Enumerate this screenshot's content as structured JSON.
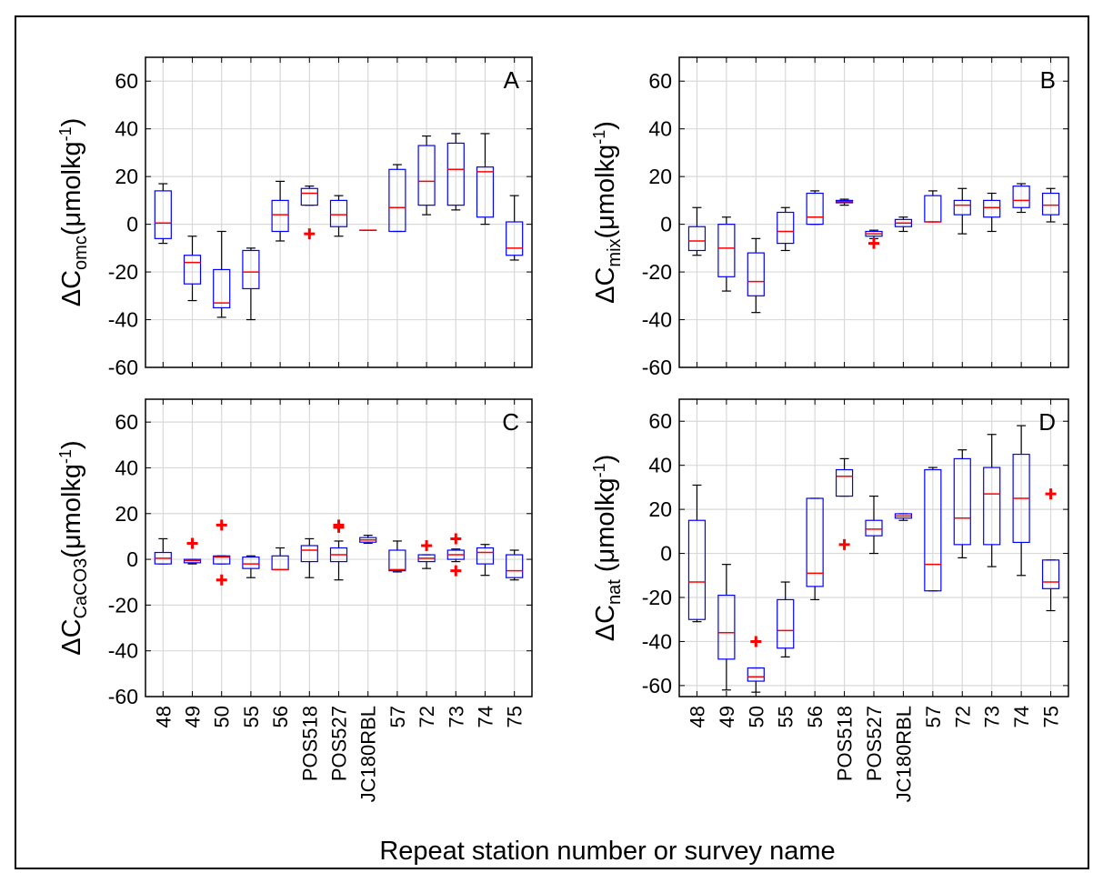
{
  "xlabel": "Repeat station number or survey name",
  "chart_data": [
    {
      "type": "box",
      "label": "A",
      "ylabel": {
        "base": "ΔC",
        "sub": "omc",
        "unit": "(μmolkg",
        "sup": "-1",
        "end": ")"
      },
      "ylim": [
        -60,
        70
      ],
      "yticks": [
        -60,
        -40,
        -20,
        0,
        20,
        40,
        60
      ],
      "grid": true,
      "box_color": "#0000ff",
      "median_color": "#ff0000",
      "whisker_color": "#000000",
      "outlier_color": "#ff0000",
      "whisker_low": [
        -8,
        -32,
        -39,
        -40,
        -7,
        8,
        -5,
        -2.5,
        -3,
        4,
        6,
        0,
        -15
      ],
      "q1": [
        -6,
        -25,
        -35,
        -27,
        -3,
        8,
        -1,
        -2.5,
        -3,
        8,
        8,
        3,
        -13
      ],
      "median": [
        0.5,
        -16,
        -33,
        -20,
        4,
        13,
        4,
        -2.5,
        7,
        18,
        23,
        22,
        -10
      ],
      "q3": [
        14,
        -13,
        -19,
        -11,
        10,
        15,
        10,
        -2.5,
        23,
        33,
        34,
        24,
        1
      ],
      "whisker_high": [
        17,
        -5,
        -3,
        -10,
        18,
        16,
        12,
        -2.5,
        25,
        37,
        38,
        38,
        12
      ],
      "outliers": [
        [],
        [],
        [],
        [],
        [],
        [
          -4
        ],
        [],
        [],
        [],
        [],
        [],
        [],
        []
      ]
    },
    {
      "type": "box",
      "label": "B",
      "ylabel": {
        "base": "ΔC",
        "sub": "mix",
        "unit": "(μmolkg",
        "sup": "-1",
        "end": ")"
      },
      "ylim": [
        -60,
        70
      ],
      "yticks": [
        -60,
        -40,
        -20,
        0,
        20,
        40,
        60
      ],
      "grid": true,
      "box_color": "#0000ff",
      "median_color": "#ff0000",
      "whisker_color": "#000000",
      "outlier_color": "#ff0000",
      "whisker_low": [
        -13,
        -28,
        -37,
        -11,
        0,
        8,
        -6,
        -3,
        1,
        -4,
        -3,
        5,
        1
      ],
      "q1": [
        -11,
        -22,
        -30,
        -8,
        0,
        9,
        -5,
        -1,
        1,
        4,
        3,
        7,
        4
      ],
      "median": [
        -7,
        -10,
        -24,
        -3,
        3,
        9.5,
        -4,
        0.5,
        1,
        8,
        7,
        10,
        8
      ],
      "q3": [
        -1,
        0,
        -12,
        5,
        13,
        10,
        -3,
        2,
        12,
        10,
        10,
        16,
        13
      ],
      "whisker_high": [
        7,
        3,
        -6,
        7,
        14,
        10.5,
        -2.5,
        3,
        14,
        15,
        13,
        17,
        15
      ],
      "outliers": [
        [],
        [],
        [],
        [],
        [],
        [],
        [
          -8
        ],
        [],
        [],
        [],
        [],
        [],
        []
      ]
    },
    {
      "type": "box",
      "label": "C",
      "ylabel": {
        "base": "ΔC",
        "sub": "CaCO3",
        "unit": "(μmolkg",
        "sup": "-1",
        "end": ")"
      },
      "categories": [
        "48",
        "49",
        "50",
        "55",
        "56",
        "POS518",
        "POS527",
        "JC180RBL",
        "57",
        "72",
        "73",
        "74",
        "75"
      ],
      "ylim": [
        -60,
        70
      ],
      "yticks": [
        -60,
        -40,
        -20,
        0,
        20,
        40,
        60
      ],
      "grid": true,
      "box_color": "#0000ff",
      "median_color": "#ff0000",
      "whisker_color": "#000000",
      "outlier_color": "#ff0000",
      "whisker_low": [
        -2,
        -2,
        -2,
        -8,
        -4.5,
        -8,
        -9,
        7,
        -5.5,
        -4,
        -1,
        -7,
        -9
      ],
      "q1": [
        -2,
        -1.5,
        -2,
        -4,
        -4.5,
        -1,
        -1,
        7.5,
        -5,
        -1,
        0,
        -2,
        -8
      ],
      "median": [
        0.5,
        -0.5,
        1,
        -2,
        -4.5,
        4,
        2,
        8.5,
        -4.5,
        0.5,
        2,
        3,
        -5
      ],
      "q3": [
        3,
        0,
        1.5,
        1,
        1.5,
        6,
        5,
        9.5,
        4,
        2,
        4,
        5,
        2
      ],
      "whisker_high": [
        9,
        0,
        1.5,
        1.5,
        5,
        9,
        8,
        10.5,
        8,
        2,
        4.5,
        6.5,
        4
      ],
      "outliers": [
        [],
        [
          7
        ],
        [
          15,
          -9
        ],
        [],
        [],
        [],
        [
          14,
          15
        ],
        [],
        [],
        [
          6
        ],
        [
          9,
          -5
        ],
        [],
        []
      ]
    },
    {
      "type": "box",
      "label": "D",
      "ylabel": {
        "base": "ΔC",
        "sub": "nat",
        "unit": " (μmolkg",
        "sup": "-1",
        "end": ")"
      },
      "categories": [
        "48",
        "49",
        "50",
        "55",
        "56",
        "POS518",
        "POS527",
        "JC180RBL",
        "57",
        "72",
        "73",
        "74",
        "75"
      ],
      "ylim": [
        -65,
        70
      ],
      "yticks": [
        -60,
        -40,
        -20,
        0,
        20,
        40,
        60
      ],
      "grid": true,
      "box_color": "#0000ff",
      "median_color": "#ff0000",
      "whisker_color": "#000000",
      "outlier_color": "#ff0000",
      "whisker_low": [
        -31,
        -62,
        -63,
        -47,
        -21,
        26,
        0,
        15,
        -17,
        -2,
        -6,
        -10,
        -26
      ],
      "q1": [
        -30,
        -48,
        -58,
        -43,
        -15,
        26,
        8,
        16,
        -17,
        4,
        4,
        5,
        -16
      ],
      "median": [
        -13,
        -36,
        -56,
        -35,
        -9,
        35,
        11,
        17,
        -5,
        16,
        27,
        25,
        -13
      ],
      "q3": [
        15,
        -19,
        -52,
        -21,
        25,
        38,
        15,
        18,
        38,
        43,
        39,
        45,
        -3
      ],
      "whisker_high": [
        31,
        -5,
        -52,
        -13,
        25,
        43,
        26,
        18,
        39,
        47,
        54,
        58,
        -3
      ],
      "outliers": [
        [],
        [],
        [
          -40
        ],
        [],
        [],
        [
          4
        ],
        [],
        [],
        [],
        [],
        [],
        [],
        [
          27
        ]
      ]
    }
  ]
}
